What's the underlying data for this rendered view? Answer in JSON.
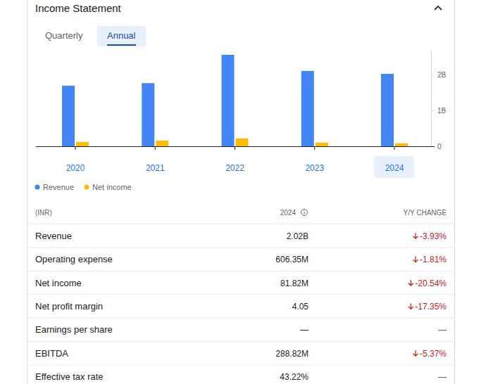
{
  "header": {
    "title": "Income Statement",
    "tabs": [
      "Quarterly",
      "Annual"
    ],
    "selected": "Annual"
  },
  "chart_data": {
    "type": "bar",
    "categories": [
      "2020",
      "2021",
      "2022",
      "2023",
      "2024"
    ],
    "series": [
      {
        "name": "Revenue",
        "color": "#4285f4",
        "values": [
          1690000000,
          1760000000,
          2550000000,
          2100000000,
          2020000000
        ]
      },
      {
        "name": "Net income",
        "color": "#fbbc04",
        "values": [
          120000000,
          160000000,
          220000000,
          103000000,
          82000000
        ]
      }
    ],
    "ylim": [
      0,
      2700000000
    ],
    "yticks": [
      0,
      {
        "value": 1000000000,
        "label": "1B"
      },
      {
        "value": 2000000000,
        "label": "2B"
      }
    ],
    "grid": false,
    "legend": "bottom left"
  },
  "table": {
    "columns": [
      "(INR)",
      "2024",
      "Y/Y CHANGE"
    ],
    "rows": [
      [
        "Revenue",
        "2.02B",
        "-3.93%"
      ],
      [
        "Operating expense",
        "606.35M",
        "-1.81%"
      ],
      [
        "Net income",
        "81.82M",
        "-20.54%"
      ],
      [
        "Net profit margin",
        "4.05",
        "-17.35%"
      ],
      [
        "Earnings per share",
        "—",
        "—"
      ],
      [
        "EBITDA",
        "288.82M",
        "-5.37%"
      ],
      [
        "Effective tax rate",
        "43.22%",
        "—"
      ]
    ]
  }
}
